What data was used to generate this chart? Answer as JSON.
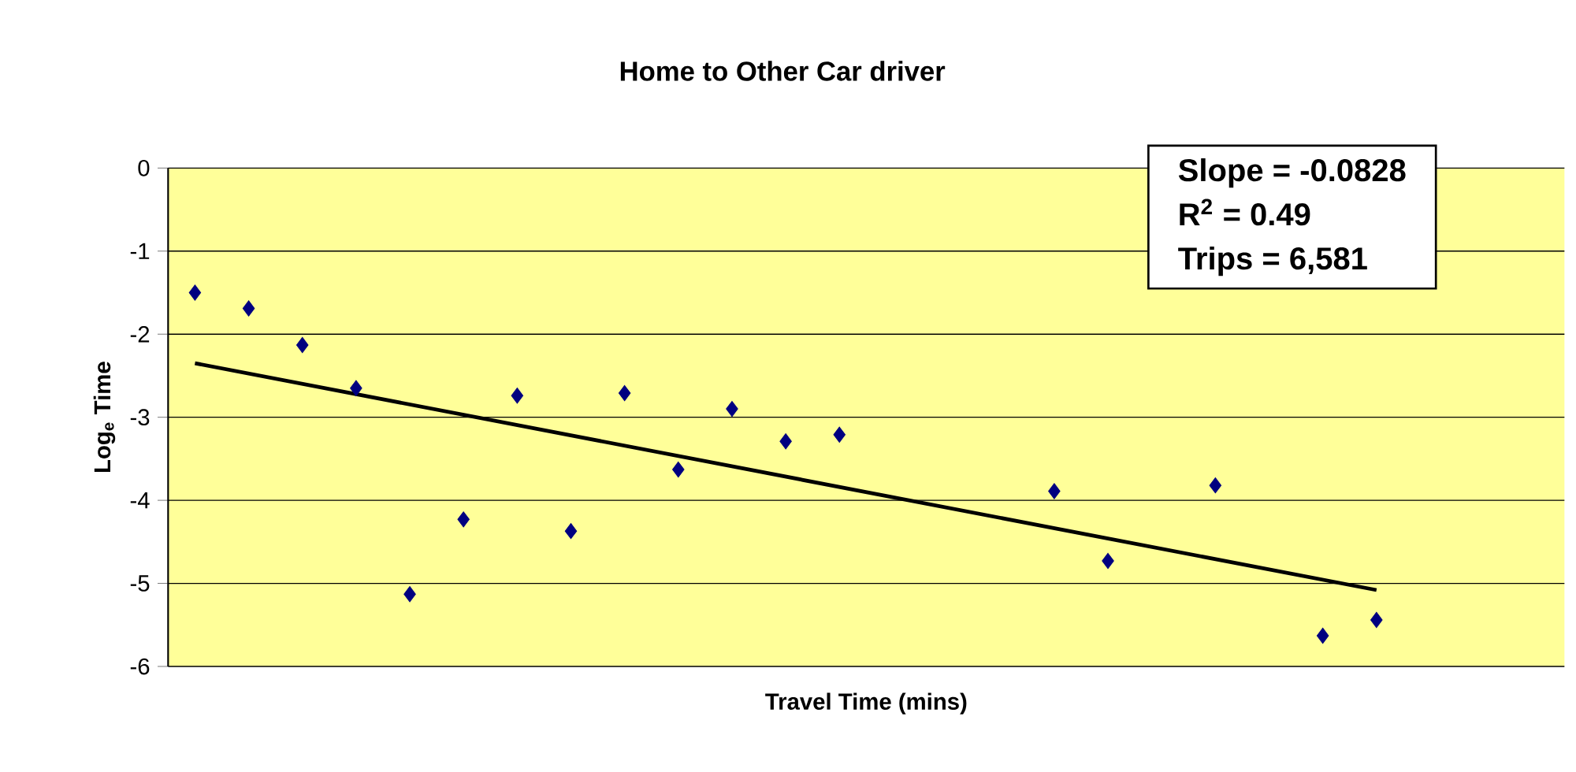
{
  "chart_data": {
    "type": "scatter",
    "title": "Home to Other Car driver",
    "xlabel": "Travel Time (mins)",
    "ylabel": "Log$_{e}$ Time",
    "categories": [
      null,
      null,
      null,
      null,
      null,
      null,
      null,
      null,
      null,
      null,
      null,
      null,
      null,
      null,
      null,
      null,
      null,
      null,
      null,
      null,
      null,
      null,
      null,
      null,
      null,
      null
    ],
    "series": [
      {
        "color": "#000080",
        "marker": "diamond",
        "values": [
          -1.5,
          -1.69,
          -2.13,
          -2.65,
          -5.13,
          -4.23,
          -2.74,
          -4.37,
          -2.71,
          -3.63,
          -2.9,
          -3.29,
          -3.21,
          null,
          null,
          null,
          -3.89,
          -4.73,
          null,
          -3.82,
          null,
          -5.63,
          -5.44,
          null,
          null,
          null
        ]
      },
      {
        "type": "line",
        "color": "#000000",
        "line_style": "solid",
        "values": [
          -2.35,
          null,
          null,
          null,
          null,
          null,
          null,
          null,
          null,
          null,
          null,
          null,
          null,
          null,
          null,
          null,
          null,
          null,
          null,
          null,
          null,
          null,
          -5.08,
          null,
          null,
          null
        ]
      }
    ],
    "ylim": [
      -6,
      0
    ],
    "yticks": [
      0,
      -1,
      -2,
      -3,
      -4,
      -5,
      -6
    ],
    "grid": "y",
    "tick_labels": "y",
    "annotations": [
      "Slope = -0.0828",
      "R$^{2}$ = 0.49",
      "Trips = 6,581"
    ]
  }
}
